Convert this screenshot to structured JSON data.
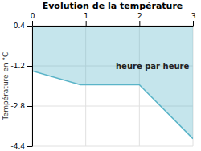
{
  "chart_data": {
    "type": "area",
    "title": "Evolution de la température",
    "y_label": "Température en °C",
    "annotation": "heure par heure",
    "x": [
      0,
      0.9,
      2.0,
      3.0
    ],
    "values": [
      -1.4,
      -1.95,
      -1.95,
      -4.1
    ],
    "color": "#5ab4c8",
    "xlim": [
      0,
      3
    ],
    "ylim": [
      -4.4,
      0.4
    ],
    "xticks": [
      0,
      1,
      2,
      3
    ],
    "yticks": [
      0.4,
      -1.2,
      -2.8,
      -4.4
    ],
    "grid": true
  }
}
